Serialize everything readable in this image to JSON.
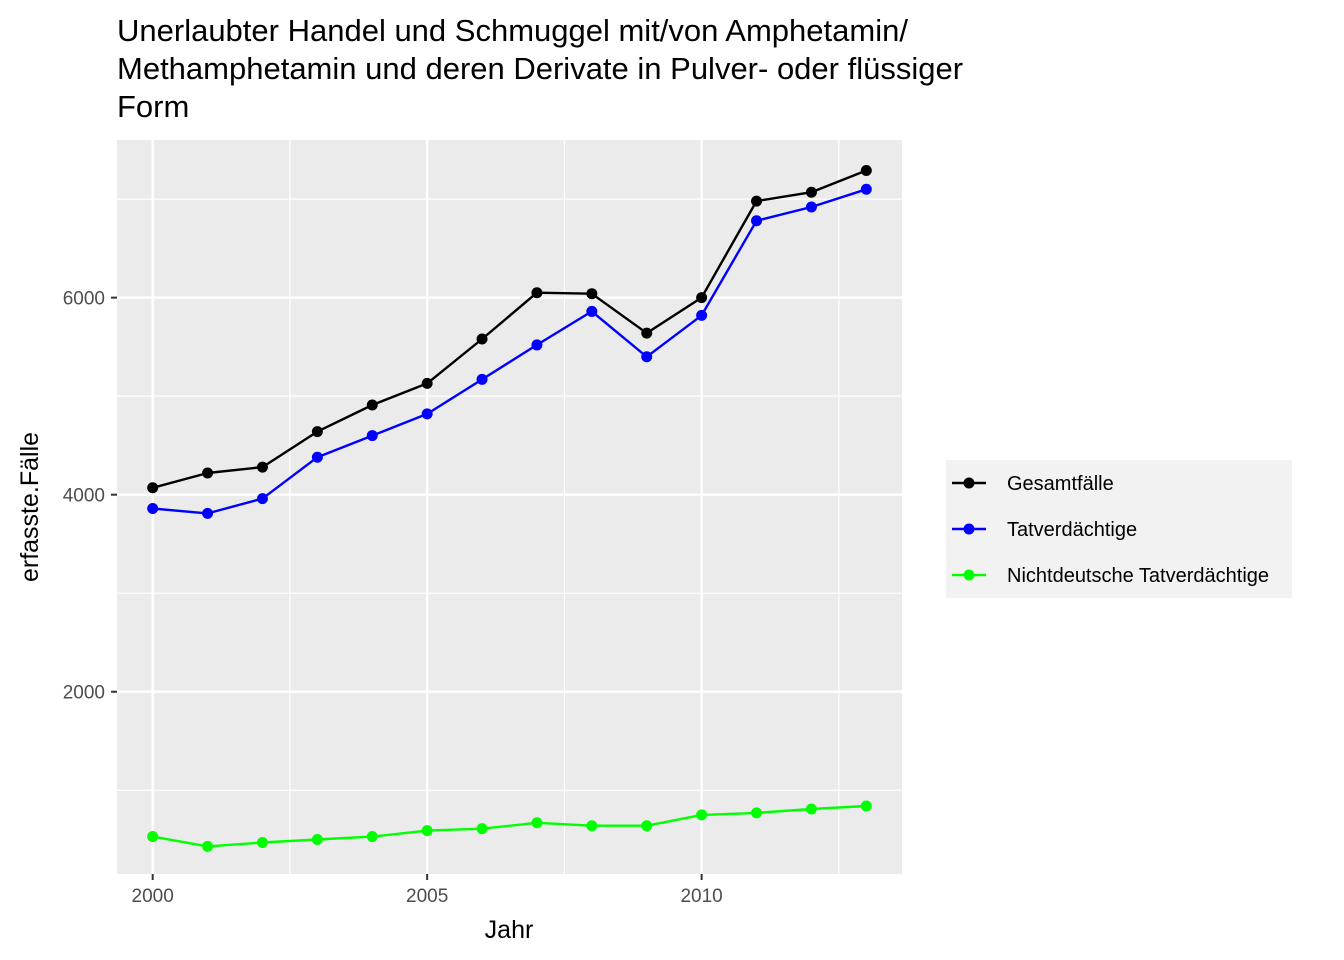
{
  "chart_data": {
    "type": "line",
    "title_lines": [
      "Unerlaubter Handel und Schmuggel mit/von Amphetamin/",
      "Methamphetamin und deren Derivate in Pulver- oder flüssiger",
      "Form"
    ],
    "xlabel": "Jahr",
    "ylabel": "erfasste.Fälle",
    "xlim": [
      1999.35,
      2013.65
    ],
    "ylim": [
      150,
      7600
    ],
    "x_ticks": [
      2000,
      2005,
      2010
    ],
    "y_ticks": [
      2000,
      4000,
      6000
    ],
    "x_tick_labels": [
      "2000",
      "2005",
      "2010"
    ],
    "y_tick_labels": [
      "2000",
      "4000",
      "6000"
    ],
    "grid": true,
    "legend_position": "right",
    "x": [
      2000,
      2001,
      2002,
      2003,
      2004,
      2005,
      2006,
      2007,
      2008,
      2009,
      2010,
      2011,
      2012,
      2013
    ],
    "series": [
      {
        "name": "Gesamtfälle",
        "color": "#000000",
        "values": [
          4070,
          4220,
          4280,
          4640,
          4910,
          5130,
          5580,
          6050,
          6040,
          5640,
          6000,
          6980,
          7070,
          7290
        ]
      },
      {
        "name": "Tatverdächtige",
        "color": "#0000ff",
        "values": [
          3860,
          3810,
          3960,
          4380,
          4600,
          4820,
          5170,
          5520,
          5860,
          5400,
          5820,
          6780,
          6920,
          7100
        ]
      },
      {
        "name": "Nichtdeutsche Tatverdächtige",
        "color": "#00ff00",
        "values": [
          530,
          430,
          470,
          500,
          530,
          590,
          610,
          670,
          640,
          640,
          750,
          770,
          810,
          840
        ]
      }
    ]
  }
}
